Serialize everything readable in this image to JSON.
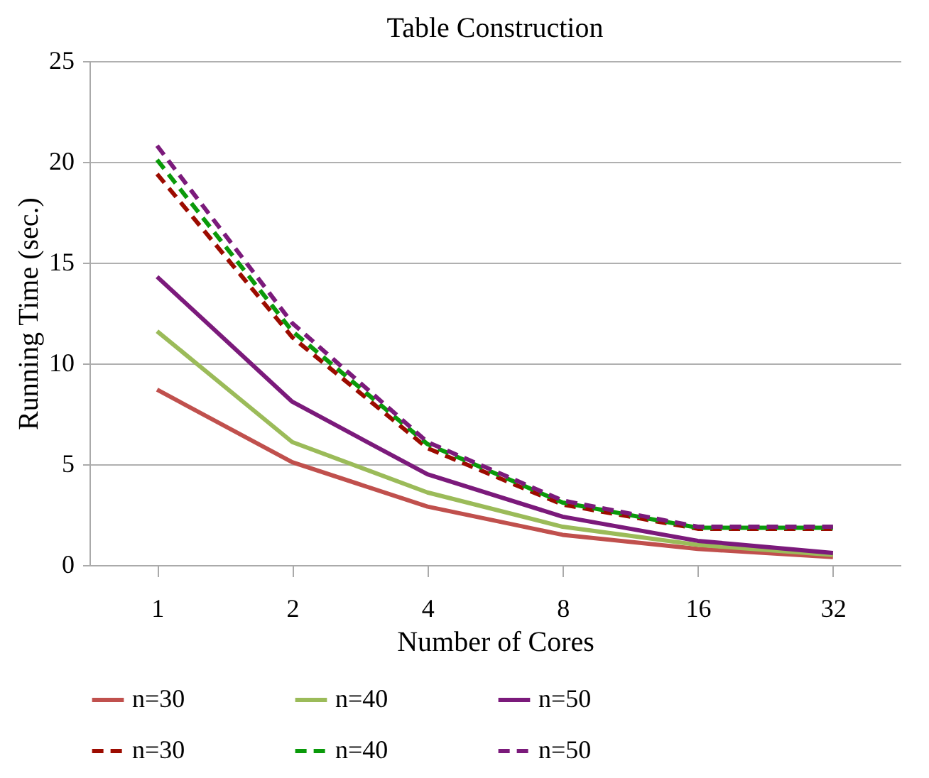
{
  "chart_data": {
    "type": "line",
    "title": "Table Construction",
    "xlabel": "Number of Cores",
    "ylabel": "Running Time (sec.)",
    "categories": [
      "1",
      "2",
      "4",
      "8",
      "16",
      "32"
    ],
    "series": [
      {
        "name": "n=30",
        "color": "#c0504d",
        "line_style": "solid",
        "values": [
          8.7,
          5.1,
          2.9,
          1.5,
          0.8,
          0.4
        ]
      },
      {
        "name": "n=40",
        "color": "#9bbb59",
        "line_style": "solid",
        "values": [
          11.6,
          6.1,
          3.6,
          1.9,
          1.0,
          0.5
        ]
      },
      {
        "name": "n=50",
        "color": "#7b1a7b",
        "line_style": "solid",
        "values": [
          14.3,
          8.1,
          4.5,
          2.4,
          1.2,
          0.6
        ]
      },
      {
        "name": "n=30",
        "color": "#9c0b00",
        "line_style": "dashed",
        "values": [
          19.4,
          11.3,
          5.8,
          3.0,
          1.8,
          1.8
        ]
      },
      {
        "name": "n=40",
        "color": "#0a9a0a",
        "line_style": "dashed",
        "values": [
          20.1,
          11.6,
          6.0,
          3.1,
          1.85,
          1.85
        ]
      },
      {
        "name": "n=50",
        "color": "#7b1a7b",
        "line_style": "dashed",
        "values": [
          20.8,
          12.0,
          6.1,
          3.2,
          1.9,
          1.9
        ]
      }
    ],
    "ylim": [
      0,
      25
    ],
    "yticks": [
      0,
      5,
      10,
      15,
      20,
      25
    ],
    "grid": "y",
    "legend": "bottom"
  }
}
